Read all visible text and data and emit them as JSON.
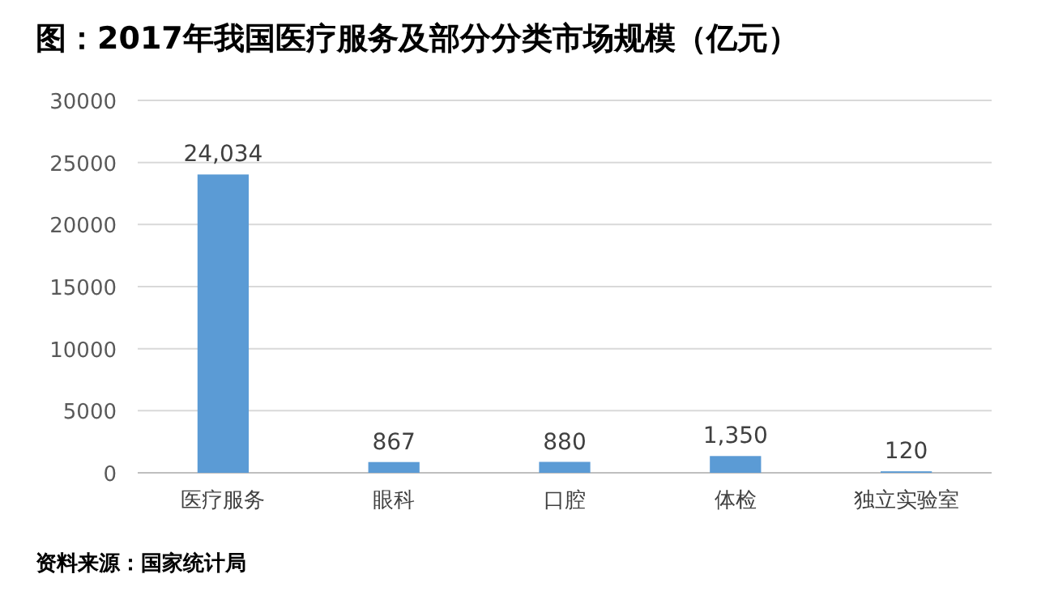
{
  "chart_data": {
    "type": "bar",
    "title": "图：2017年我国医疗服务及部分分类市场规模（亿元）",
    "categories": [
      "医疗服务",
      "眼科",
      "口腔",
      "体检",
      "独立实验室"
    ],
    "values": [
      24034,
      867,
      880,
      1350,
      120
    ],
    "value_labels": [
      "24,034",
      "867",
      "880",
      "1,350",
      "120"
    ],
    "color": "#5b9bd5",
    "ylim": [
      0,
      30000
    ],
    "yticks": [
      0,
      5000,
      10000,
      15000,
      20000,
      25000,
      30000
    ],
    "grid": "y",
    "annotations": [
      "资料来源：国家统计局"
    ]
  }
}
